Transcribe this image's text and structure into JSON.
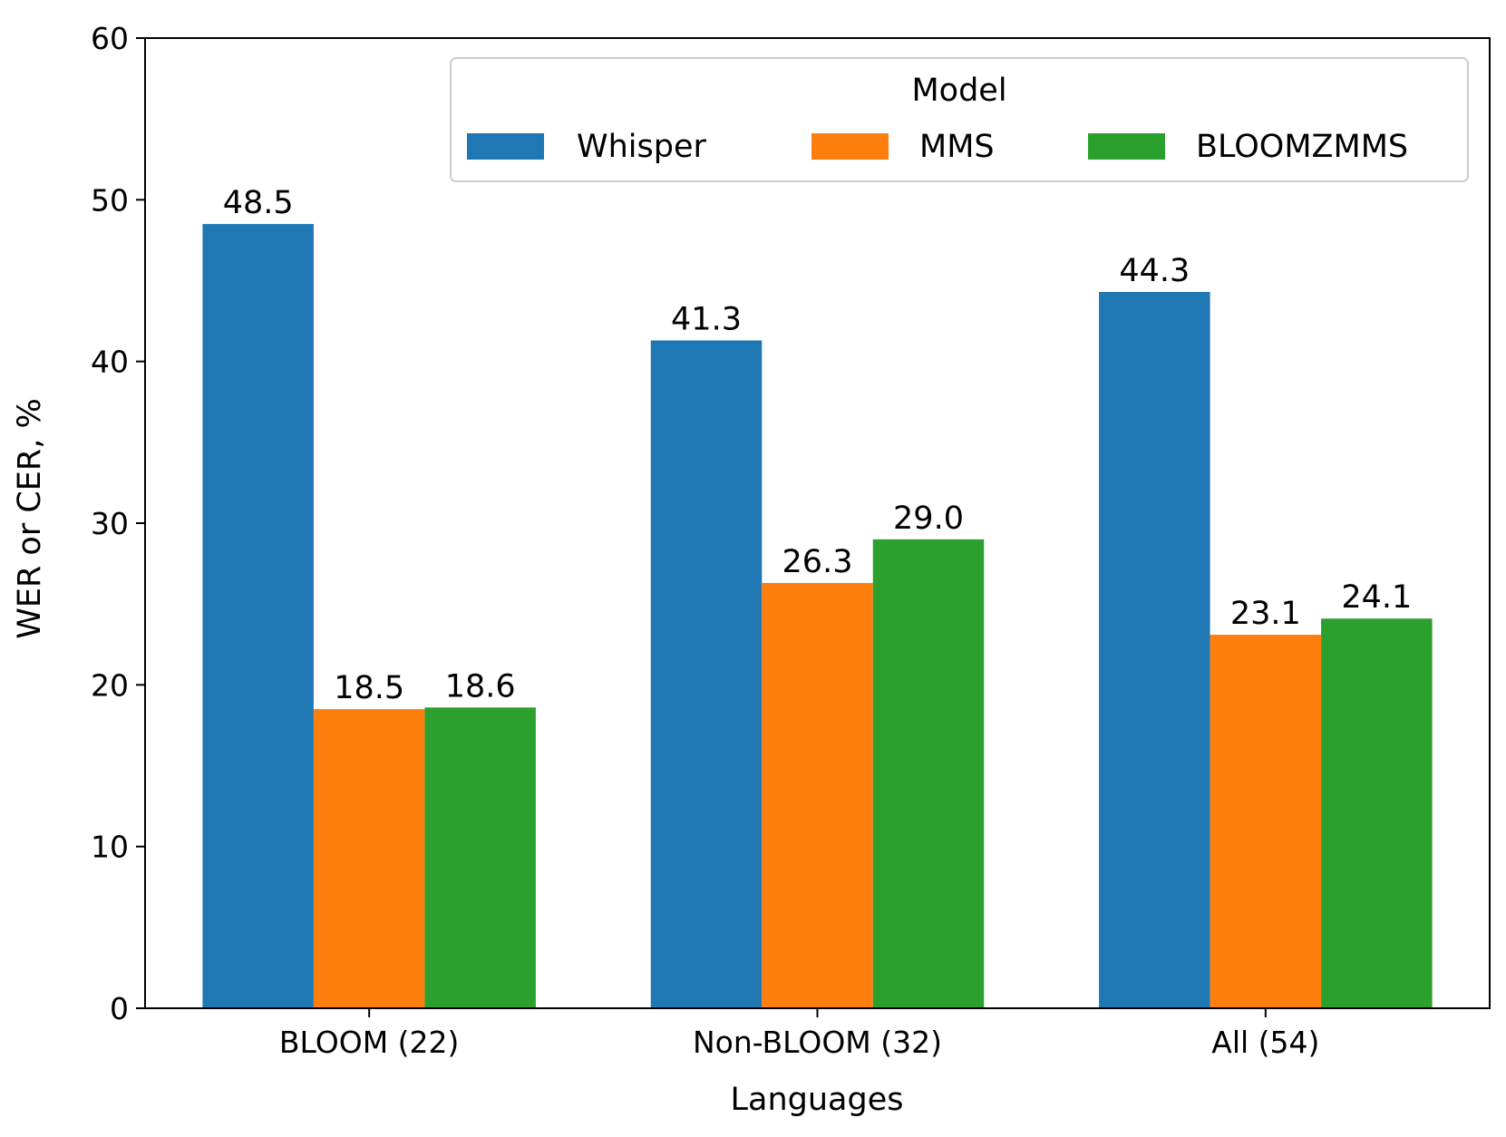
{
  "chart_data": {
    "type": "bar",
    "categories": [
      "BLOOM (22)",
      "Non-BLOOM (32)",
      "All (54)"
    ],
    "series": [
      {
        "name": "Whisper",
        "values": [
          48.5,
          41.3,
          44.3
        ],
        "labels": [
          "48.5",
          "41.3",
          "44.3"
        ],
        "color": "#1f77b4"
      },
      {
        "name": "MMS",
        "values": [
          18.5,
          26.3,
          23.1
        ],
        "labels": [
          "18.5",
          "26.3",
          "23.1"
        ],
        "color": "#ff7f0e"
      },
      {
        "name": "BLOOMZMMS",
        "values": [
          18.6,
          29.0,
          24.1
        ],
        "labels": [
          "18.6",
          "29.0",
          "24.1"
        ],
        "color": "#2ca02c"
      }
    ],
    "xlabel": "Languages",
    "ylabel": "WER or CER, %",
    "ylim": [
      0,
      60
    ],
    "yticks": [
      "0",
      "10",
      "20",
      "30",
      "40",
      "50",
      "60"
    ],
    "grid": false,
    "legend": {
      "title": "Model",
      "placement": "top-right",
      "columns": 3
    }
  }
}
